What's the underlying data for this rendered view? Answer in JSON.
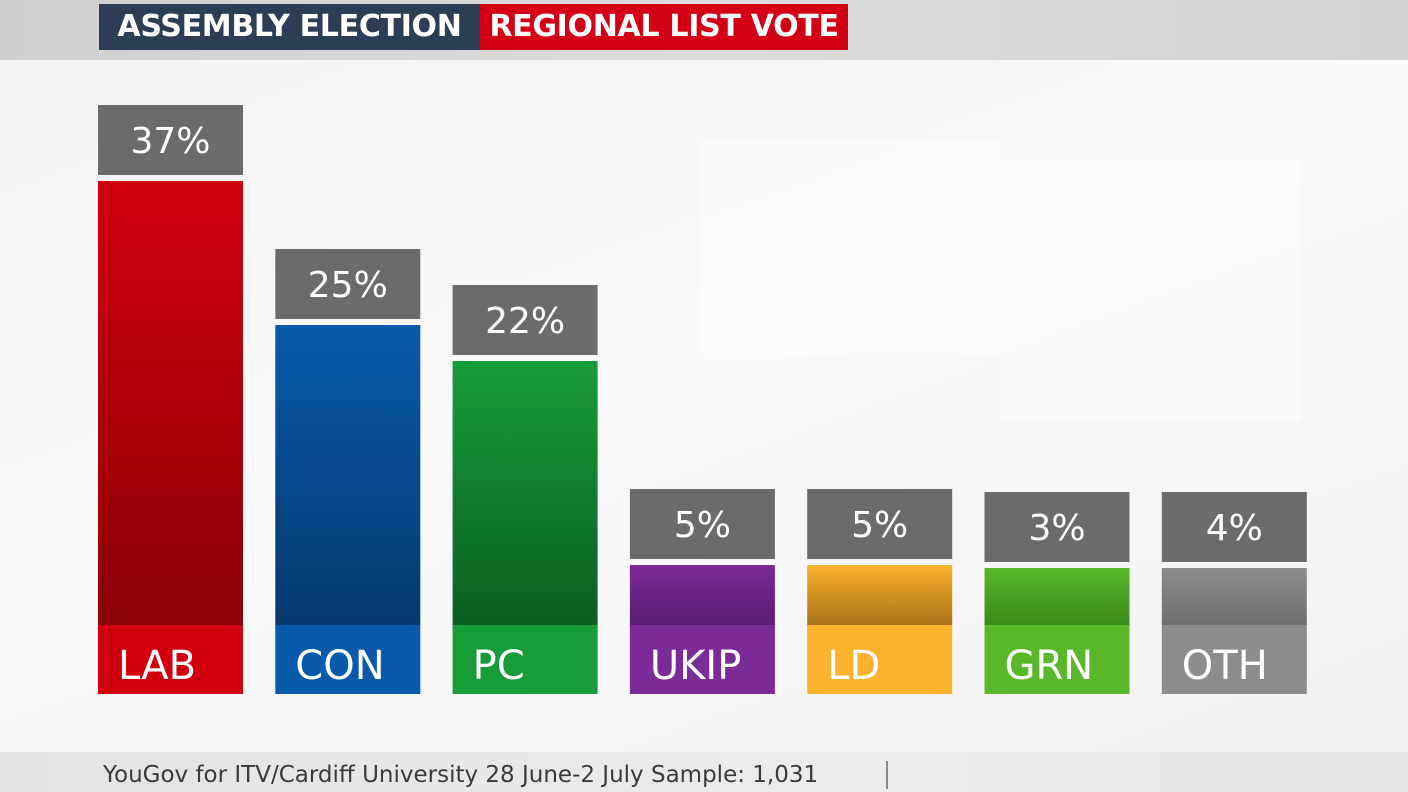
{
  "header": {
    "left_label": "ASSEMBLY ELECTION",
    "right_label": "REGIONAL LIST VOTE",
    "left_color": "#2b3e55",
    "right_color": "#d40015"
  },
  "footer": {
    "source_text": "YouGov for ITV/Cardiff University 28 June-2 July Sample: 1,031"
  },
  "chart_data": {
    "type": "bar",
    "categories": [
      "LAB",
      "CON",
      "PC",
      "UKIP",
      "LD",
      "GRN",
      "OTH"
    ],
    "values": [
      37,
      25,
      22,
      5,
      5,
      3,
      4
    ],
    "value_labels": [
      "37%",
      "25%",
      "22%",
      "5%",
      "5%",
      "3%",
      "4%"
    ],
    "colors": [
      "#d2000f",
      "#0a5aab",
      "#179c3a",
      "#7b2a98",
      "#fbb22c",
      "#58b82a",
      "#8c8c8c"
    ],
    "dark_colors": [
      "#8a0008",
      "#06386e",
      "#0b5e22",
      "#5a1d72",
      "#a9731a",
      "#3c8a1b",
      "#6f6f6f"
    ],
    "label_box_color": "#6b6b6b",
    "grid": false,
    "legend": "none",
    "ylim": [
      0,
      37
    ]
  }
}
